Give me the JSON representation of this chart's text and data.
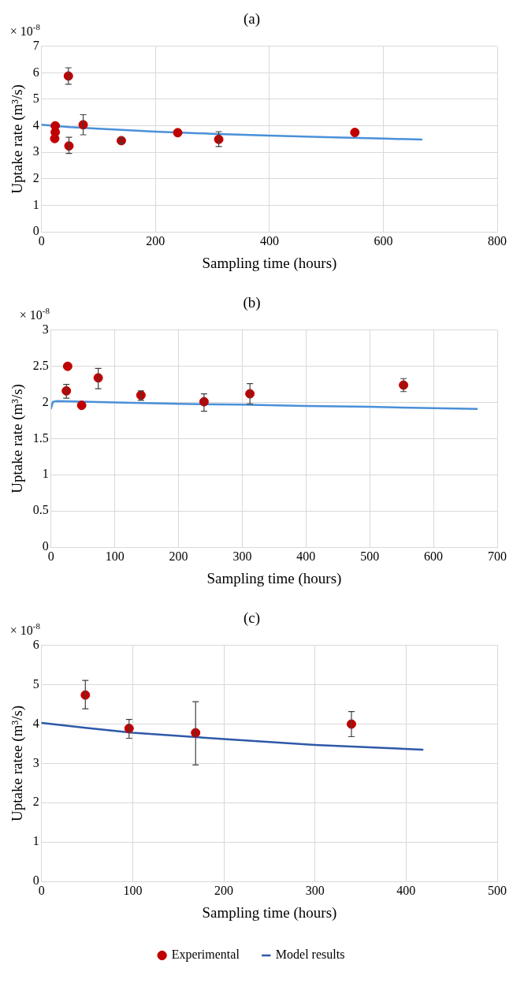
{
  "chart_data": [
    {
      "type": "scatter",
      "title": "(a)",
      "xlabel": "Sampling time (hours)",
      "ylabel": "Uptake rate (m³/s)",
      "annotations": [
        "× 10$^{-8}$"
      ],
      "xlim": [
        0,
        800
      ],
      "xticks": [
        0,
        200,
        400,
        600,
        800
      ],
      "ylim": [
        0,
        7
      ],
      "yticks": [
        0,
        1,
        2,
        3,
        4,
        5,
        6,
        7
      ],
      "grid": true,
      "legend": false,
      "series": [
        {
          "color": "#c00000",
          "marker": "circle",
          "x": [
            24,
            24,
            23,
            47,
            48,
            73,
            140,
            239,
            311,
            550
          ],
          "values": [
            4.0,
            3.76,
            3.52,
            5.88,
            3.24,
            4.04,
            3.44,
            3.74,
            3.49,
            3.75
          ],
          "errors": [
            null,
            null,
            null,
            [
              5.57,
              6.19
            ],
            [
              2.96,
              3.57
            ],
            [
              3.66,
              4.42
            ],
            [
              3.34,
              3.54
            ],
            null,
            [
              3.22,
              3.78
            ],
            null
          ]
        },
        {
          "type": "line",
          "color": "#4a90d9",
          "marker": "none",
          "line_style": "solid",
          "x": [
            0,
            50,
            100,
            200,
            300,
            400,
            500,
            600,
            667
          ],
          "values": [
            4.04,
            3.95,
            3.89,
            3.78,
            3.7,
            3.63,
            3.57,
            3.52,
            3.48
          ]
        }
      ]
    },
    {
      "type": "scatter",
      "title": "(b)",
      "xlabel": "Sampling time (hours)",
      "ylabel": "Uptake rate (m³/s)",
      "annotations": [
        "× 10$^{-8}$"
      ],
      "xlim": [
        0,
        700
      ],
      "xticks": [
        0,
        100,
        200,
        300,
        400,
        500,
        600,
        700
      ],
      "ylim": [
        0,
        3
      ],
      "yticks": [
        0,
        0.5,
        1,
        1.5,
        2,
        2.5,
        3
      ],
      "grid": true,
      "legend": false,
      "series": [
        {
          "color": "#c00000",
          "marker": "circle",
          "x": [
            24,
            26,
            48,
            74,
            141,
            240,
            312,
            553
          ],
          "values": [
            2.16,
            2.5,
            1.96,
            2.34,
            2.1,
            2.01,
            2.12,
            2.24
          ],
          "errors": [
            [
              2.06,
              2.25
            ],
            null,
            null,
            [
              2.19,
              2.47
            ],
            [
              2.03,
              2.16
            ],
            [
              1.88,
              2.12
            ],
            [
              1.98,
              2.26
            ],
            [
              2.15,
              2.33
            ]
          ]
        },
        {
          "type": "line",
          "color": "#4a90d9",
          "marker": "none",
          "line_style": "solid",
          "x": [
            0,
            3,
            10,
            100,
            200,
            300,
            400,
            500,
            600,
            668
          ],
          "values": [
            1.92,
            2.01,
            2.02,
            2.0,
            1.98,
            1.97,
            1.95,
            1.94,
            1.92,
            1.91
          ]
        }
      ]
    },
    {
      "type": "scatter",
      "title": "(c)",
      "xlabel": "Sampling time (hours)",
      "ylabel": "Uptake ratee (m³/s)",
      "annotations": [
        "× 10$^{-8}$"
      ],
      "xlim": [
        0,
        500
      ],
      "xticks": [
        0,
        100,
        200,
        300,
        400,
        500
      ],
      "ylim": [
        0,
        6
      ],
      "yticks": [
        0,
        1,
        2,
        3,
        4,
        5,
        6
      ],
      "grid": true,
      "legend": "bottom",
      "series": [
        {
          "name": "Experimental",
          "color": "#c00000",
          "marker": "circle",
          "x": [
            48,
            96,
            169,
            340
          ],
          "values": [
            4.74,
            3.89,
            3.78,
            4.0
          ],
          "errors": [
            [
              4.39,
              5.11
            ],
            [
              3.64,
              4.12
            ],
            [
              2.96,
              4.57
            ],
            [
              3.68,
              4.32
            ]
          ]
        },
        {
          "type": "line",
          "name": "Model results",
          "color": "#2e59a8",
          "marker": "none",
          "line_style": "solid",
          "x": [
            0,
            50,
            100,
            200,
            300,
            418
          ],
          "values": [
            4.03,
            3.9,
            3.78,
            3.62,
            3.47,
            3.35
          ]
        }
      ]
    }
  ]
}
